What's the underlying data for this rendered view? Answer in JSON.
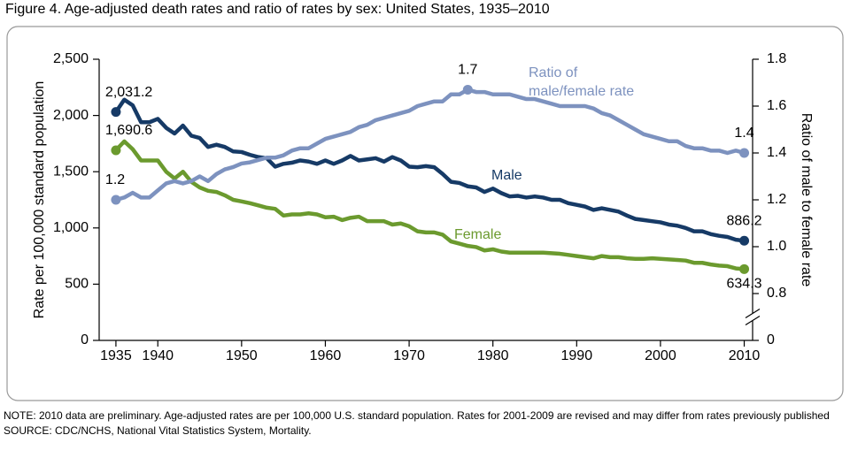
{
  "chart_data": {
    "type": "line",
    "title": "Figure 4. Age-adjusted death rates and ratio of rates by sex: United States, 1935–2010",
    "y_label": "Rate per 100,000 standard population",
    "y2_label": "Ratio of male to female rate",
    "note": "NOTE: 2010 data are preliminary. Age-adjusted rates are per 100,000 U.S. standard population. Rates for 2001-2009 are revised and may differ from rates previously published",
    "source": "SOURCE: CDC/NCHS, National Vital Statistics System, Mortality.",
    "x": [
      1935,
      1936,
      1937,
      1938,
      1939,
      1940,
      1941,
      1942,
      1943,
      1944,
      1945,
      1946,
      1947,
      1948,
      1949,
      1950,
      1951,
      1952,
      1953,
      1954,
      1955,
      1956,
      1957,
      1958,
      1959,
      1960,
      1961,
      1962,
      1963,
      1964,
      1965,
      1966,
      1967,
      1968,
      1969,
      1970,
      1971,
      1972,
      1973,
      1974,
      1975,
      1976,
      1977,
      1978,
      1979,
      1980,
      1981,
      1982,
      1983,
      1984,
      1985,
      1986,
      1987,
      1988,
      1989,
      1990,
      1991,
      1992,
      1993,
      1994,
      1995,
      1996,
      1997,
      1998,
      1999,
      2000,
      2001,
      2002,
      2003,
      2004,
      2005,
      2006,
      2007,
      2008,
      2009,
      2010
    ],
    "xlim": [
      1933,
      2011
    ],
    "xticks": [
      1935,
      1940,
      1950,
      1960,
      1970,
      1980,
      1990,
      2000,
      2010
    ],
    "ylim": [
      0,
      2500
    ],
    "yticks": [
      0,
      500,
      {
        "value": 1000,
        "label": "1,000"
      },
      {
        "value": 1500,
        "label": "1,500"
      },
      {
        "value": 2000,
        "label": "2,000"
      },
      {
        "value": 2500,
        "label": "2,500"
      }
    ],
    "y2lim": [
      0.6,
      1.8
    ],
    "y2ticks": [
      0.8,
      {
        "value": 1,
        "label": "1.0"
      },
      1.2,
      1.4,
      1.6,
      1.8
    ],
    "y2_break": {
      "value": 0.6,
      "label": "0"
    },
    "series": [
      {
        "name": "Male",
        "color": "#163a66",
        "values": [
          2031.2,
          2140,
          2090,
          1940,
          1940,
          1970,
          1890,
          1840,
          1910,
          1820,
          1800,
          1720,
          1740,
          1720,
          1680,
          1675,
          1650,
          1630,
          1620,
          1545,
          1570,
          1580,
          1600,
          1590,
          1570,
          1600,
          1570,
          1600,
          1640,
          1600,
          1610,
          1620,
          1590,
          1630,
          1600,
          1545,
          1540,
          1550,
          1540,
          1480,
          1410,
          1400,
          1370,
          1360,
          1320,
          1350,
          1310,
          1280,
          1285,
          1270,
          1280,
          1270,
          1250,
          1250,
          1220,
          1205,
          1190,
          1160,
          1175,
          1160,
          1145,
          1110,
          1080,
          1070,
          1060,
          1050,
          1030,
          1020,
          1000,
          970,
          970,
          945,
          930,
          920,
          895,
          886.2
        ],
        "value_labels": [
          "2,031.2",
          null,
          null,
          null,
          null,
          null,
          null,
          null,
          null,
          null,
          null,
          null,
          null,
          null,
          null,
          null,
          null,
          null,
          null,
          null,
          null,
          null,
          null,
          null,
          null,
          null,
          null,
          null,
          null,
          null,
          null,
          null,
          null,
          null,
          null,
          null,
          null,
          null,
          null,
          null,
          null,
          null,
          null,
          null,
          null,
          null,
          null,
          null,
          null,
          null,
          null,
          null,
          null,
          null,
          null,
          null,
          null,
          null,
          null,
          null,
          null,
          null,
          null,
          null,
          null,
          null,
          null,
          null,
          null,
          null,
          null,
          null,
          null,
          null,
          null,
          "886.2"
        ]
      },
      {
        "name": "Female",
        "color": "#6b9a2e",
        "values": [
          1690.6,
          1770,
          1700,
          1600,
          1600,
          1600,
          1500,
          1440,
          1500,
          1410,
          1360,
          1330,
          1320,
          1290,
          1250,
          1236,
          1220,
          1200,
          1180,
          1170,
          1110,
          1120,
          1120,
          1130,
          1120,
          1095,
          1100,
          1070,
          1090,
          1100,
          1060,
          1060,
          1060,
          1030,
          1040,
          1015,
          970,
          960,
          960,
          940,
          880,
          860,
          840,
          830,
          800,
          810,
          790,
          780,
          780,
          780,
          780,
          780,
          775,
          770,
          760,
          750,
          740,
          730,
          750,
          740,
          740,
          730,
          725,
          725,
          730,
          725,
          720,
          715,
          710,
          690,
          690,
          675,
          665,
          660,
          640,
          634.3
        ],
        "value_labels": [
          "1,690.6",
          null,
          null,
          null,
          null,
          null,
          null,
          null,
          null,
          null,
          null,
          null,
          null,
          null,
          null,
          null,
          null,
          null,
          null,
          null,
          null,
          null,
          null,
          null,
          null,
          null,
          null,
          null,
          null,
          null,
          null,
          null,
          null,
          null,
          null,
          null,
          null,
          null,
          null,
          null,
          null,
          null,
          null,
          null,
          null,
          null,
          null,
          null,
          null,
          null,
          null,
          null,
          null,
          null,
          null,
          null,
          null,
          null,
          null,
          null,
          null,
          null,
          null,
          null,
          null,
          null,
          null,
          null,
          null,
          null,
          null,
          null,
          null,
          null,
          null,
          "634.3"
        ]
      },
      {
        "name": "Ratio of male/female rate",
        "color": "#7d92bf",
        "axis": "y2",
        "values": [
          1.2,
          1.21,
          1.23,
          1.21,
          1.21,
          1.24,
          1.27,
          1.28,
          1.27,
          1.28,
          1.3,
          1.28,
          1.31,
          1.33,
          1.34,
          1.355,
          1.36,
          1.37,
          1.38,
          1.38,
          1.39,
          1.41,
          1.42,
          1.42,
          1.44,
          1.46,
          1.47,
          1.48,
          1.49,
          1.51,
          1.52,
          1.54,
          1.55,
          1.56,
          1.57,
          1.58,
          1.6,
          1.61,
          1.62,
          1.62,
          1.65,
          1.65,
          1.67,
          1.66,
          1.66,
          1.65,
          1.65,
          1.65,
          1.64,
          1.63,
          1.63,
          1.62,
          1.61,
          1.6,
          1.6,
          1.6,
          1.6,
          1.59,
          1.57,
          1.56,
          1.54,
          1.52,
          1.5,
          1.48,
          1.47,
          1.46,
          1.45,
          1.45,
          1.43,
          1.42,
          1.42,
          1.41,
          1.41,
          1.4,
          1.41,
          1.4
        ],
        "value_labels": [
          "1.2",
          null,
          null,
          null,
          null,
          null,
          null,
          null,
          null,
          null,
          null,
          null,
          null,
          null,
          null,
          null,
          null,
          null,
          null,
          null,
          null,
          null,
          null,
          null,
          null,
          null,
          null,
          null,
          null,
          null,
          null,
          null,
          null,
          null,
          null,
          null,
          null,
          null,
          null,
          null,
          null,
          null,
          "1.7",
          null,
          null,
          null,
          null,
          null,
          null,
          null,
          null,
          null,
          null,
          null,
          null,
          null,
          null,
          null,
          null,
          null,
          null,
          null,
          null,
          null,
          null,
          null,
          null,
          null,
          null,
          null,
          null,
          null,
          null,
          null,
          null,
          "1.4"
        ]
      }
    ]
  }
}
